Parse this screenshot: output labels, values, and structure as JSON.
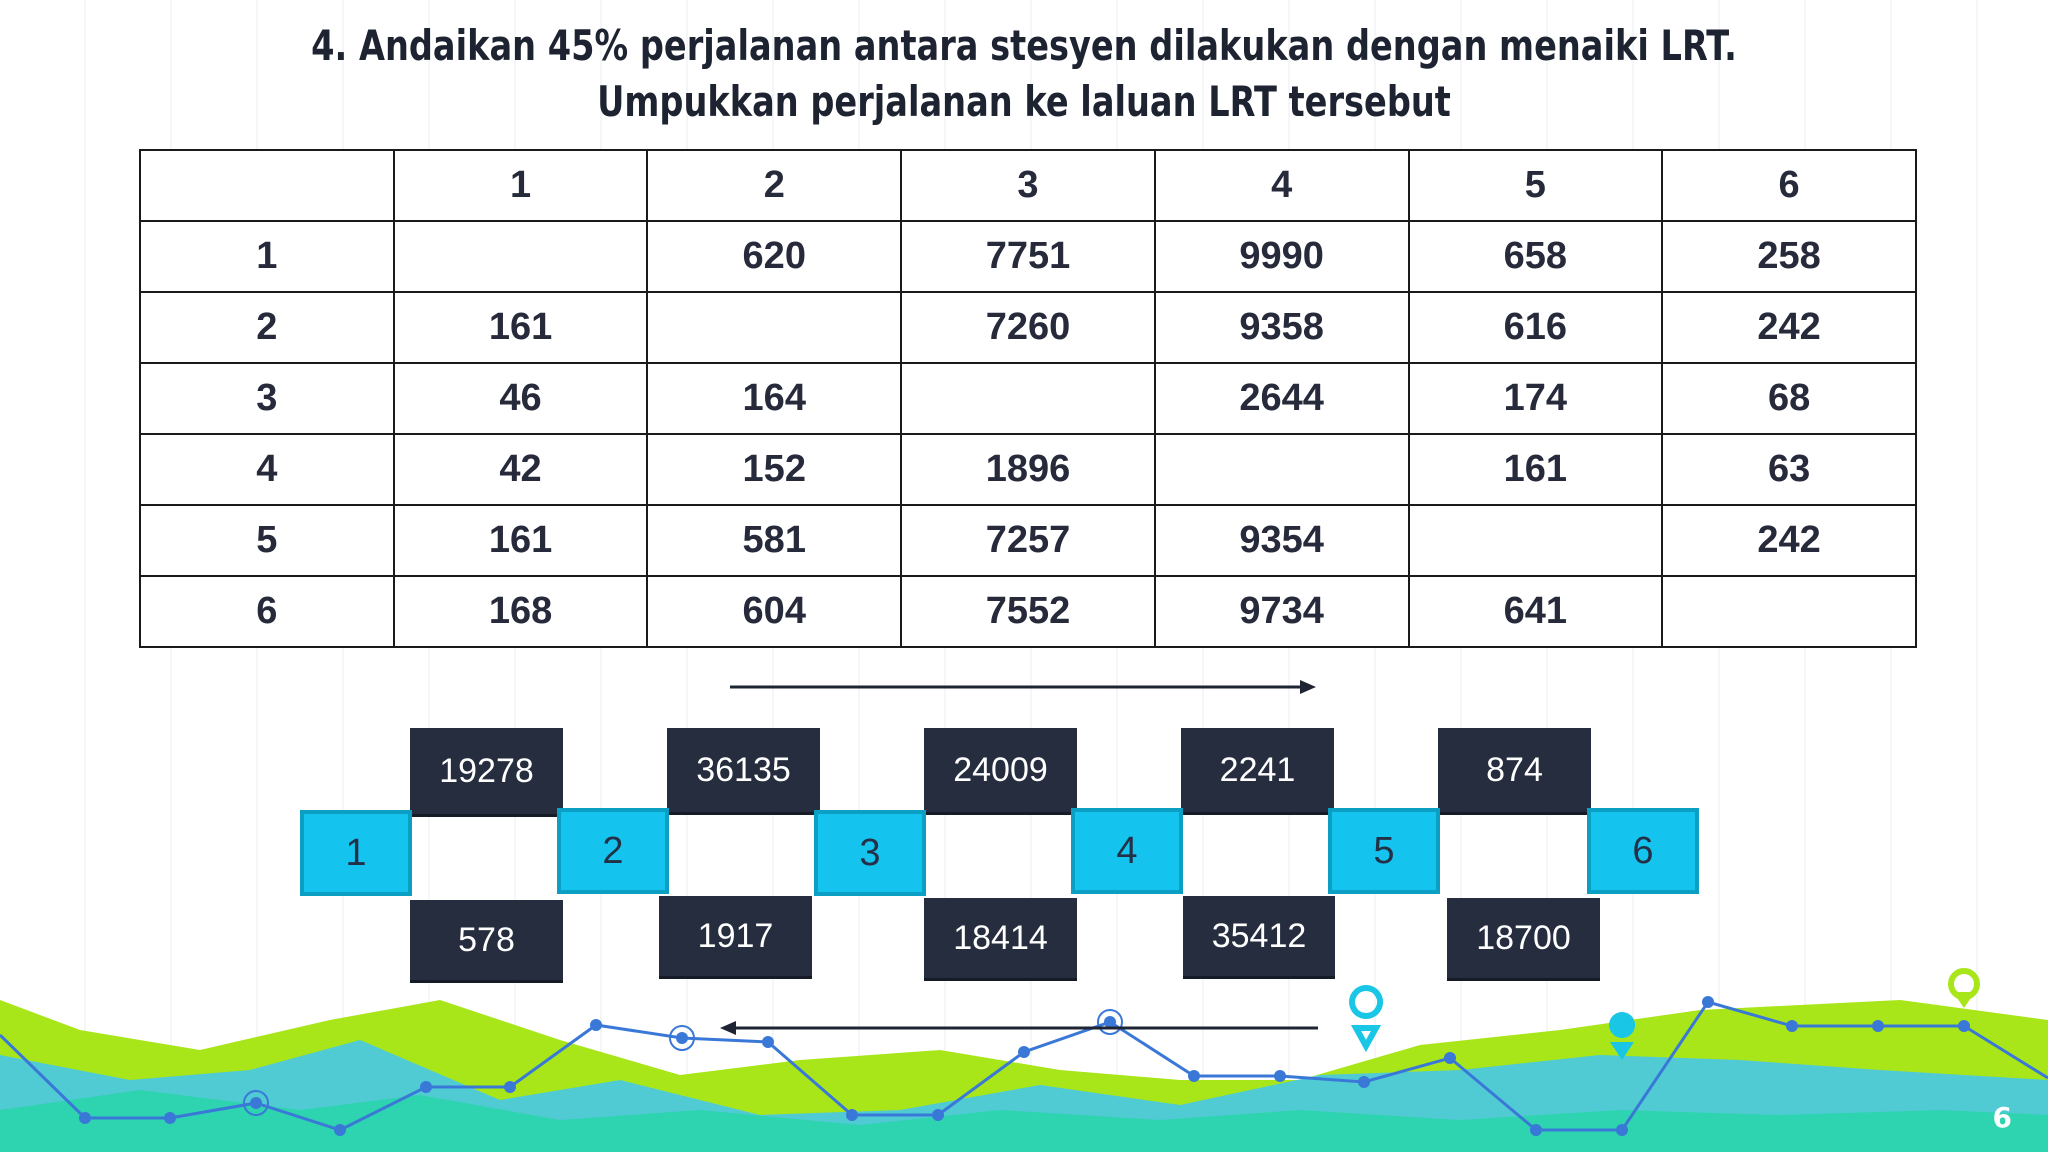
{
  "title": {
    "line1": "4. Andaikan 45% perjalanan antara stesyen dilakukan dengan menaiki LRT.",
    "line2": "Umpukkan perjalanan ke laluan LRT tersebut"
  },
  "table": {
    "headers": [
      "",
      "1",
      "2",
      "3",
      "4",
      "5",
      "6"
    ],
    "rows": [
      [
        "1",
        "",
        "620",
        "7751",
        "9990",
        "658",
        "258"
      ],
      [
        "2",
        "161",
        "",
        "7260",
        "9358",
        "616",
        "242"
      ],
      [
        "3",
        "46",
        "164",
        "",
        "2644",
        "174",
        "68"
      ],
      [
        "4",
        "42",
        "152",
        "1896",
        "",
        "161",
        "63"
      ],
      [
        "5",
        "161",
        "581",
        "7257",
        "9354",
        "",
        "242"
      ],
      [
        "6",
        "168",
        "604",
        "7552",
        "9734",
        "641",
        ""
      ]
    ]
  },
  "diagram": {
    "stations": [
      "1",
      "2",
      "3",
      "4",
      "5",
      "6"
    ],
    "forward_volumes": [
      "19278",
      "36135",
      "24009",
      "2241",
      "874"
    ],
    "backward_volumes": [
      "578",
      "1917",
      "18414",
      "35412",
      "18700"
    ]
  },
  "page_number": "6",
  "colors": {
    "station_fill": "#15c3ef",
    "volume_box": "#262d3f",
    "deco_green": "#a8e61a",
    "deco_teal": "#2ed3b0",
    "deco_blue": "#3a8fd8"
  }
}
